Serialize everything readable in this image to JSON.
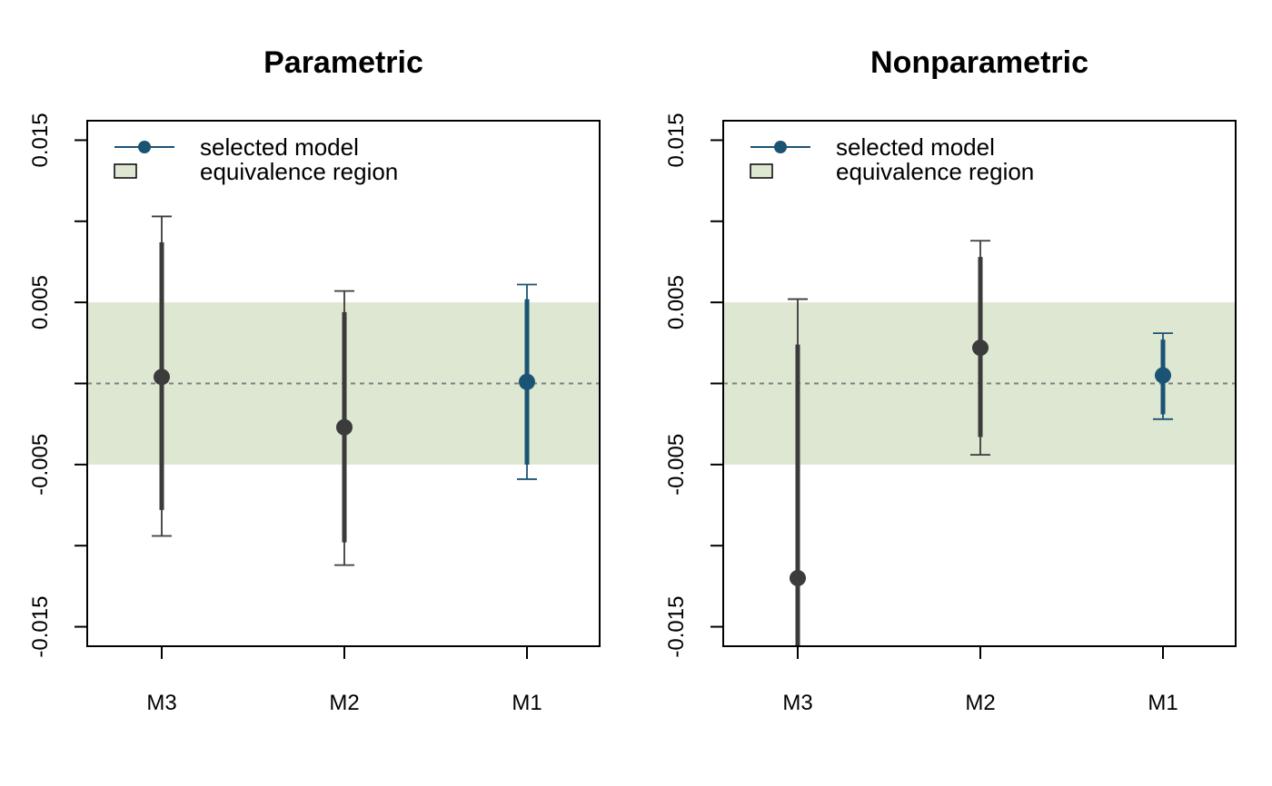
{
  "colors": {
    "selected": "#1b5374",
    "other": "#3b3b3b",
    "region_fill": "#dde7d1",
    "zero_line": "#808080"
  },
  "legend": {
    "selected_label": "selected model",
    "region_label": "equivalence region"
  },
  "chart_data": [
    {
      "type": "scatter",
      "title": "Parametric",
      "xlabel": "",
      "ylabel": "",
      "categories": [
        "M3",
        "M2",
        "M1"
      ],
      "ylim": [
        -0.0162,
        0.0162
      ],
      "yticks": [
        -0.015,
        -0.01,
        -0.005,
        0,
        0.005,
        0.01,
        0.015
      ],
      "yticklabels": [
        "-0.015",
        "",
        "-0.005",
        "",
        "0.005",
        "",
        "0.015"
      ],
      "equivalence_region": [
        -0.005,
        0.005
      ],
      "reference_line": 0,
      "selected": "M1",
      "points": [
        {
          "model": "M3",
          "estimate": 0.0004,
          "inner": [
            -0.0078,
            0.0087
          ],
          "outer": [
            -0.0094,
            0.0103
          ]
        },
        {
          "model": "M2",
          "estimate": -0.0027,
          "inner": [
            -0.0098,
            0.0044
          ],
          "outer": [
            -0.0112,
            0.0057
          ]
        },
        {
          "model": "M1",
          "estimate": 0.0001,
          "inner": [
            -0.005,
            0.0052
          ],
          "outer": [
            -0.0059,
            0.0061
          ]
        }
      ]
    },
    {
      "type": "scatter",
      "title": "Nonparametric",
      "xlabel": "",
      "ylabel": "",
      "categories": [
        "M3",
        "M2",
        "M1"
      ],
      "ylim": [
        -0.0162,
        0.0162
      ],
      "yticks": [
        -0.015,
        -0.01,
        -0.005,
        0,
        0.005,
        0.01,
        0.015
      ],
      "yticklabels": [
        "-0.015",
        "",
        "-0.005",
        "",
        "0.005",
        "",
        "0.015"
      ],
      "equivalence_region": [
        -0.005,
        0.005
      ],
      "reference_line": 0,
      "selected": "M1",
      "points": [
        {
          "model": "M3",
          "estimate": -0.012,
          "inner": [
            -0.0162,
            0.0024
          ],
          "outer": [
            -0.0162,
            0.0052
          ]
        },
        {
          "model": "M2",
          "estimate": 0.0022,
          "inner": [
            -0.0033,
            0.0078
          ],
          "outer": [
            -0.0044,
            0.0088
          ]
        },
        {
          "model": "M1",
          "estimate": 0.0005,
          "inner": [
            -0.0019,
            0.0027
          ],
          "outer": [
            -0.0022,
            0.0031
          ]
        }
      ]
    }
  ]
}
